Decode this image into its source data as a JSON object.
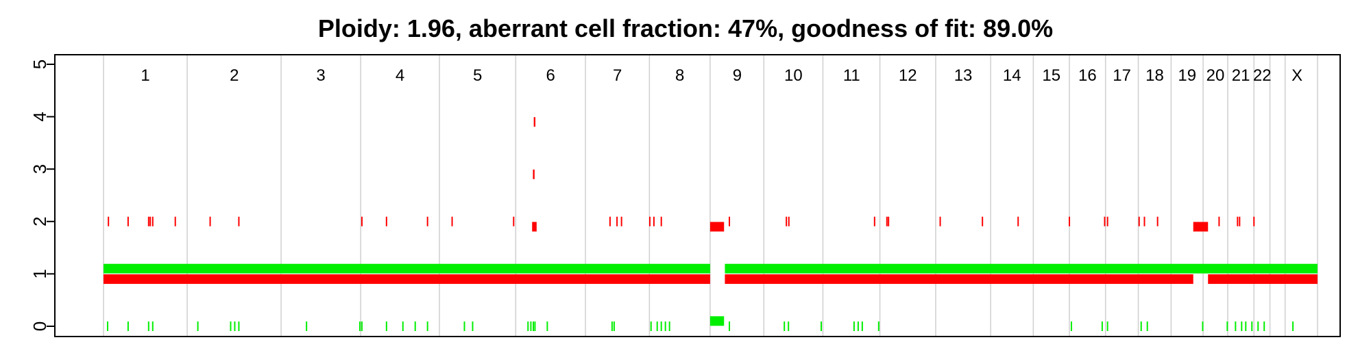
{
  "chart_data": {
    "type": "scatter",
    "title": "Ploidy: 1.96, aberrant cell fraction: 47%, goodness of fit: 89.0%",
    "xlabel": "",
    "ylabel": "",
    "ylim": [
      0,
      5
    ],
    "yticks": [
      "0",
      "1",
      "2",
      "3",
      "4",
      "5"
    ],
    "grid": "vertical chromosome separators",
    "colors": {
      "copy_number_segments": "#ff0000",
      "minor_allele_segments": "#00ee00",
      "separators": "#cfcfcf"
    },
    "chromosome_separators": [
      0.0,
      2.04,
      4.33,
      6.27,
      8.19,
      10.05,
      11.75,
      13.31,
      14.79,
      16.1,
      17.54,
      18.93,
      20.29,
      21.63,
      22.67,
      23.55,
      24.43,
      25.23,
      26.03,
      26.81,
      27.41,
      28.05,
      28.44,
      28.81,
      29.6
    ],
    "chromosomes": [
      {
        "label": "1",
        "pos": 1.02
      },
      {
        "label": "2",
        "pos": 3.19
      },
      {
        "label": "3",
        "pos": 5.3
      },
      {
        "label": "4",
        "pos": 7.23
      },
      {
        "label": "5",
        "pos": 9.12
      },
      {
        "label": "6",
        "pos": 10.9
      },
      {
        "label": "7",
        "pos": 12.53
      },
      {
        "label": "8",
        "pos": 14.05
      },
      {
        "label": "9",
        "pos": 15.45
      },
      {
        "label": "10",
        "pos": 16.82
      },
      {
        "label": "11",
        "pos": 18.24
      },
      {
        "label": "12",
        "pos": 19.61
      },
      {
        "label": "13",
        "pos": 20.96
      },
      {
        "label": "14",
        "pos": 22.15
      },
      {
        "label": "15",
        "pos": 23.11
      },
      {
        "label": "16",
        "pos": 23.99
      },
      {
        "label": "17",
        "pos": 24.83
      },
      {
        "label": "18",
        "pos": 25.63
      },
      {
        "label": "19",
        "pos": 26.42
      },
      {
        "label": "20",
        "pos": 27.11
      },
      {
        "label": "21",
        "pos": 27.73
      },
      {
        "label": "22",
        "pos": 28.25
      },
      {
        "label": "X",
        "pos": 29.1
      }
    ],
    "series": [
      {
        "segments": [
          {
            "x0": 0.0,
            "x1": 14.79,
            "y": 0.9
          },
          {
            "x0": 15.15,
            "x1": 26.57,
            "y": 0.9
          },
          {
            "x0": 26.93,
            "x1": 29.6,
            "y": 0.9
          },
          {
            "x0": 14.79,
            "x1": 15.13,
            "y": 1.9
          },
          {
            "x0": 26.57,
            "x1": 26.93,
            "y": 1.9
          },
          {
            "x0": 10.45,
            "x1": 10.56,
            "y": 1.9
          },
          {
            "x0": 10.47,
            "x1": 10.51,
            "y": 2.9
          },
          {
            "x0": 10.49,
            "x1": 10.53,
            "y": 3.9
          }
        ],
        "ticks": [
          0.12,
          0.6,
          1.1,
          1.14,
          1.2,
          1.75,
          2.6,
          3.3,
          6.3,
          6.9,
          7.9,
          8.5,
          10.0,
          12.35,
          12.52,
          12.63,
          13.32,
          13.42,
          13.6,
          15.26,
          16.65,
          16.71,
          18.8,
          19.1,
          19.14,
          20.4,
          21.43,
          22.3,
          23.55,
          24.41,
          24.48,
          25.25,
          25.38,
          25.7,
          27.2,
          27.65,
          27.7,
          28.05
        ]
      },
      {
        "segments": [
          {
            "x0": 0.0,
            "x1": 14.79,
            "y": 1.1
          },
          {
            "x0": 15.15,
            "x1": 29.6,
            "y": 1.1
          },
          {
            "x0": 14.79,
            "x1": 15.13,
            "y": 0.1
          }
        ],
        "ticks": [
          0.1,
          0.6,
          1.1,
          1.2,
          2.3,
          3.1,
          3.2,
          3.3,
          4.95,
          6.25,
          6.3,
          6.9,
          7.3,
          7.6,
          7.9,
          8.8,
          9.0,
          10.35,
          10.42,
          10.48,
          10.52,
          10.82,
          12.4,
          12.45,
          13.35,
          13.5,
          13.6,
          13.7,
          13.8,
          15.26,
          16.6,
          16.7,
          17.5,
          18.3,
          18.4,
          18.5,
          18.9,
          23.6,
          24.35,
          24.48,
          25.3,
          25.45,
          26.8,
          27.4,
          27.6,
          27.75,
          27.85,
          28.0,
          28.15,
          28.3,
          29.0
        ]
      }
    ]
  }
}
